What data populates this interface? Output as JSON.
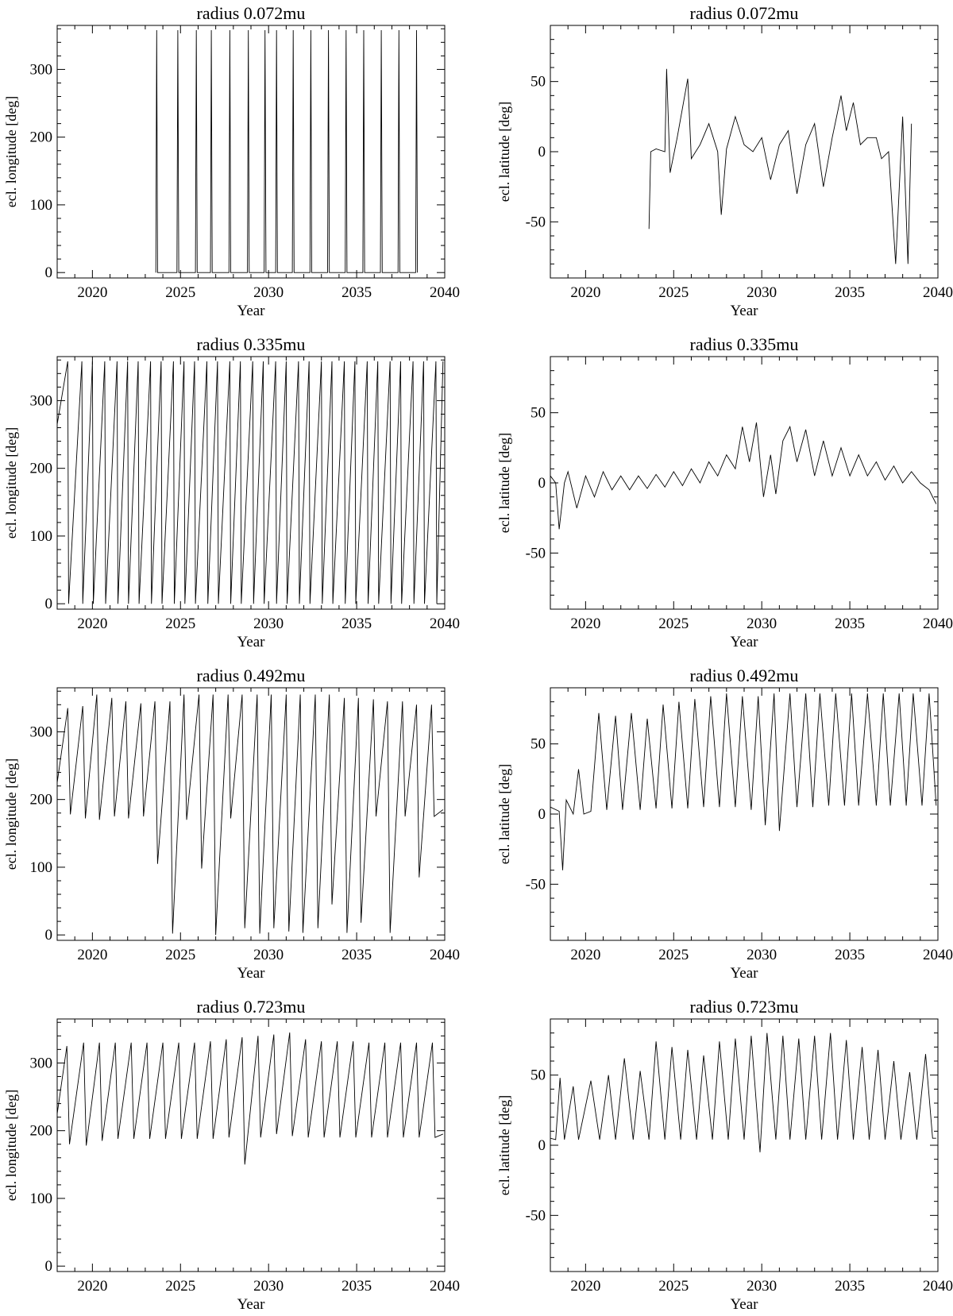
{
  "figure": {
    "panels_per_row": 2,
    "rows": 4
  },
  "chart_data": [
    {
      "type": "line",
      "title": "radius 0.072mu",
      "xlabel": "Year",
      "ylabel": "ecl. longitude [deg]",
      "xlim": [
        2018,
        2040
      ],
      "ylim": [
        -8,
        365
      ],
      "xticks": [
        2020,
        2025,
        2030,
        2035,
        2040
      ],
      "yticks": [
        0,
        100,
        200,
        300
      ],
      "grid": false,
      "series": [
        {
          "x": [
            2023.6,
            2023.65,
            2023.7,
            2024.8,
            2024.85,
            2024.9,
            2025.85,
            2025.9,
            2025.95,
            2026.7,
            2026.75,
            2026.8,
            2027.75,
            2027.8,
            2027.85,
            2028.8,
            2028.85,
            2028.9,
            2029.75,
            2029.8,
            2029.85,
            2030.4,
            2030.45,
            2030.5,
            2031.35,
            2031.4,
            2031.45,
            2032.35,
            2032.4,
            2032.45,
            2033.35,
            2033.4,
            2033.45,
            2034.35,
            2034.4,
            2034.45,
            2035.35,
            2035.4,
            2035.45,
            2036.35,
            2036.4,
            2036.45,
            2037.35,
            2037.4,
            2037.45,
            2038.35,
            2038.4,
            2038.45
          ],
          "y": [
            0,
            358,
            0,
            0,
            358,
            0,
            0,
            358,
            0,
            0,
            358,
            0,
            0,
            358,
            0,
            0,
            358,
            0,
            0,
            358,
            0,
            0,
            358,
            0,
            0,
            358,
            0,
            0,
            358,
            0,
            0,
            358,
            0,
            0,
            358,
            0,
            0,
            358,
            0,
            0,
            358,
            0,
            0,
            358,
            0,
            0,
            358,
            0
          ]
        }
      ]
    },
    {
      "type": "line",
      "title": "radius 0.072mu",
      "xlabel": "Year",
      "ylabel": "ecl. latitude [deg]",
      "xlim": [
        2018,
        2040
      ],
      "ylim": [
        -90,
        90
      ],
      "xticks": [
        2020,
        2025,
        2030,
        2035,
        2040
      ],
      "yticks": [
        -50,
        0,
        50
      ],
      "grid": false,
      "series": [
        {
          "x": [
            2023.6,
            2023.7,
            2024.0,
            2024.5,
            2024.6,
            2024.8,
            2025.2,
            2025.8,
            2026.0,
            2026.5,
            2027.0,
            2027.5,
            2027.7,
            2028.0,
            2028.5,
            2029.0,
            2029.5,
            2030.0,
            2030.5,
            2031.0,
            2031.5,
            2032.0,
            2032.5,
            2033.0,
            2033.5,
            2034.0,
            2034.5,
            2034.8,
            2035.2,
            2035.6,
            2036.0,
            2036.5,
            2036.8,
            2037.2,
            2037.6,
            2038.0,
            2038.3,
            2038.5
          ],
          "y": [
            -55,
            0,
            2,
            0,
            59,
            -15,
            10,
            52,
            -5,
            5,
            20,
            0,
            -45,
            2,
            25,
            5,
            0,
            10,
            -20,
            5,
            15,
            -30,
            5,
            20,
            -25,
            10,
            40,
            15,
            35,
            5,
            10,
            10,
            -5,
            0,
            -80,
            25,
            -80,
            20
          ]
        }
      ]
    },
    {
      "type": "line",
      "title": "radius 0.335mu",
      "xlabel": "Year",
      "ylabel": "ecl. longitude [deg]",
      "xlim": [
        2018,
        2040
      ],
      "ylim": [
        -8,
        365
      ],
      "xticks": [
        2020,
        2025,
        2030,
        2035,
        2040
      ],
      "yticks": [
        0,
        100,
        200,
        300
      ],
      "grid": false,
      "series": [
        {
          "x": [
            2018.0,
            2018.6,
            2018.65,
            2019.4,
            2019.45,
            2020.0,
            2020.05,
            2020.7,
            2020.75,
            2021.4,
            2021.45,
            2022.0,
            2022.05,
            2022.6,
            2022.65,
            2023.3,
            2023.35,
            2023.9,
            2023.95,
            2024.6,
            2024.65,
            2025.2,
            2025.25,
            2025.8,
            2025.85,
            2026.5,
            2026.55,
            2027.1,
            2027.15,
            2027.8,
            2027.85,
            2028.4,
            2028.45,
            2029.1,
            2029.15,
            2029.7,
            2029.75,
            2030.4,
            2030.45,
            2031.0,
            2031.05,
            2031.7,
            2031.75,
            2032.3,
            2032.35,
            2033.0,
            2033.05,
            2033.6,
            2033.65,
            2034.3,
            2034.35,
            2034.9,
            2034.95,
            2035.6,
            2035.65,
            2036.2,
            2036.25,
            2036.9,
            2036.95,
            2037.5,
            2037.55,
            2038.2,
            2038.25,
            2038.8,
            2038.85,
            2039.5,
            2039.55,
            2039.9
          ],
          "y": [
            265,
            358,
            0,
            358,
            0,
            358,
            0,
            358,
            0,
            358,
            0,
            358,
            0,
            358,
            0,
            358,
            0,
            358,
            0,
            358,
            0,
            358,
            0,
            358,
            0,
            358,
            0,
            358,
            0,
            358,
            0,
            358,
            0,
            358,
            0,
            358,
            0,
            358,
            0,
            358,
            0,
            358,
            0,
            358,
            0,
            358,
            0,
            358,
            0,
            358,
            0,
            358,
            0,
            358,
            0,
            358,
            0,
            358,
            0,
            358,
            0,
            358,
            0,
            358,
            0,
            358,
            0,
            358
          ]
        }
      ]
    },
    {
      "type": "line",
      "title": "radius 0.335mu",
      "xlabel": "Year",
      "ylabel": "ecl. latitude [deg]",
      "xlim": [
        2018,
        2040
      ],
      "ylim": [
        -90,
        90
      ],
      "xticks": [
        2020,
        2025,
        2030,
        2035,
        2040
      ],
      "yticks": [
        -50,
        0,
        50
      ],
      "grid": false,
      "series": [
        {
          "x": [
            2018.0,
            2018.3,
            2018.5,
            2018.8,
            2019.0,
            2019.5,
            2020.0,
            2020.5,
            2021.0,
            2021.5,
            2022.0,
            2022.5,
            2023.0,
            2023.5,
            2024.0,
            2024.5,
            2025.0,
            2025.5,
            2026.0,
            2026.5,
            2027.0,
            2027.5,
            2028.0,
            2028.5,
            2028.9,
            2029.3,
            2029.7,
            2030.1,
            2030.5,
            2030.8,
            2031.2,
            2031.6,
            2032.0,
            2032.5,
            2033.0,
            2033.5,
            2034.0,
            2034.5,
            2035.0,
            2035.5,
            2036.0,
            2036.5,
            2037.0,
            2037.5,
            2038.0,
            2038.5,
            2039.0,
            2039.5,
            2039.9
          ],
          "y": [
            5,
            0,
            -33,
            0,
            8,
            -18,
            5,
            -10,
            8,
            -5,
            5,
            -5,
            5,
            -4,
            6,
            -3,
            8,
            -2,
            10,
            0,
            15,
            5,
            20,
            10,
            40,
            15,
            43,
            -10,
            20,
            -8,
            30,
            40,
            15,
            38,
            5,
            30,
            5,
            25,
            5,
            20,
            5,
            15,
            2,
            12,
            0,
            8,
            0,
            -5,
            -15
          ]
        }
      ]
    },
    {
      "type": "line",
      "title": "radius 0.492mu",
      "xlabel": "Year",
      "ylabel": "ecl. longitude [deg]",
      "xlim": [
        2018,
        2040
      ],
      "ylim": [
        -8,
        365
      ],
      "xticks": [
        2020,
        2025,
        2030,
        2035,
        2040
      ],
      "yticks": [
        0,
        100,
        200,
        300
      ],
      "grid": false,
      "series": [
        {
          "x": [
            2018.0,
            2018.6,
            2018.75,
            2019.45,
            2019.6,
            2020.25,
            2020.4,
            2021.1,
            2021.25,
            2021.9,
            2022.05,
            2022.75,
            2022.9,
            2023.55,
            2023.7,
            2024.4,
            2024.55,
            2025.2,
            2025.35,
            2026.05,
            2026.2,
            2026.85,
            2027.0,
            2027.7,
            2027.85,
            2028.5,
            2028.65,
            2029.35,
            2029.5,
            2030.15,
            2030.3,
            2031.0,
            2031.15,
            2031.8,
            2031.95,
            2032.65,
            2032.8,
            2033.45,
            2033.6,
            2034.3,
            2034.45,
            2035.1,
            2035.25,
            2035.95,
            2036.1,
            2036.75,
            2036.9,
            2037.6,
            2037.75,
            2038.4,
            2038.55,
            2039.25,
            2039.4,
            2039.9
          ],
          "y": [
            225,
            335,
            178,
            338,
            172,
            355,
            170,
            350,
            175,
            345,
            172,
            342,
            175,
            345,
            105,
            345,
            2,
            355,
            170,
            355,
            98,
            355,
            0,
            355,
            172,
            355,
            10,
            355,
            2,
            355,
            10,
            355,
            5,
            355,
            3,
            355,
            10,
            355,
            45,
            350,
            3,
            350,
            18,
            348,
            175,
            345,
            3,
            345,
            175,
            340,
            85,
            340,
            175,
            185
          ]
        }
      ]
    },
    {
      "type": "line",
      "title": "radius 0.492mu",
      "xlabel": "Year",
      "ylabel": "ecl. latitude [deg]",
      "xlim": [
        2018,
        2040
      ],
      "ylim": [
        -90,
        90
      ],
      "xticks": [
        2020,
        2025,
        2030,
        2035,
        2040
      ],
      "yticks": [
        -50,
        0,
        50
      ],
      "grid": false,
      "series": [
        {
          "x": [
            2018.0,
            2018.5,
            2018.7,
            2018.9,
            2019.3,
            2019.6,
            2019.9,
            2020.3,
            2020.75,
            2021.2,
            2021.7,
            2022.1,
            2022.6,
            2023.1,
            2023.5,
            2024.0,
            2024.4,
            2024.9,
            2025.3,
            2025.8,
            2026.2,
            2026.7,
            2027.1,
            2027.6,
            2028.0,
            2028.5,
            2028.9,
            2029.4,
            2029.8,
            2030.2,
            2030.7,
            2031.0,
            2031.6,
            2032.0,
            2032.5,
            2032.9,
            2033.3,
            2033.8,
            2034.2,
            2034.7,
            2035.1,
            2035.5,
            2036.0,
            2036.5,
            2036.9,
            2037.3,
            2037.8,
            2038.2,
            2038.6,
            2039.1,
            2039.5,
            2039.9
          ],
          "y": [
            5,
            2,
            -40,
            10,
            0,
            32,
            0,
            2,
            72,
            3,
            70,
            3,
            72,
            3,
            68,
            4,
            78,
            4,
            80,
            4,
            82,
            5,
            84,
            5,
            86,
            5,
            84,
            3,
            84,
            -8,
            86,
            -12,
            86,
            5,
            86,
            5,
            86,
            6,
            86,
            6,
            86,
            6,
            86,
            6,
            86,
            6,
            86,
            6,
            86,
            6,
            86,
            6
          ]
        }
      ]
    },
    {
      "type": "line",
      "title": "radius 0.723mu",
      "xlabel": "Year",
      "ylabel": "ecl. longitude [deg]",
      "xlim": [
        2018,
        2040
      ],
      "ylim": [
        -8,
        365
      ],
      "xticks": [
        2020,
        2025,
        2030,
        2035,
        2040
      ],
      "yticks": [
        0,
        100,
        200,
        300
      ],
      "grid": false,
      "series": [
        {
          "x": [
            2018.0,
            2018.55,
            2018.7,
            2019.5,
            2019.65,
            2020.4,
            2020.55,
            2021.3,
            2021.45,
            2022.2,
            2022.35,
            2023.1,
            2023.25,
            2024.0,
            2024.15,
            2024.9,
            2025.05,
            2025.8,
            2025.95,
            2026.7,
            2026.85,
            2027.6,
            2027.75,
            2028.5,
            2028.65,
            2029.4,
            2029.55,
            2030.3,
            2030.45,
            2031.2,
            2031.35,
            2032.1,
            2032.25,
            2033.0,
            2033.15,
            2033.9,
            2034.05,
            2034.8,
            2034.95,
            2035.7,
            2035.85,
            2036.6,
            2036.75,
            2037.5,
            2037.65,
            2038.4,
            2038.55,
            2039.3,
            2039.45,
            2039.9
          ],
          "y": [
            225,
            325,
            180,
            330,
            178,
            330,
            185,
            330,
            188,
            330,
            188,
            330,
            188,
            330,
            188,
            330,
            188,
            330,
            188,
            332,
            188,
            335,
            190,
            338,
            150,
            340,
            190,
            342,
            195,
            345,
            192,
            335,
            190,
            332,
            190,
            332,
            190,
            332,
            190,
            330,
            190,
            330,
            190,
            330,
            190,
            330,
            190,
            330,
            190,
            195
          ]
        }
      ]
    },
    {
      "type": "line",
      "title": "radius 0.723mu",
      "xlabel": "Year",
      "ylabel": "ecl. latitude [deg]",
      "xlim": [
        2018,
        2040
      ],
      "ylim": [
        -90,
        90
      ],
      "xticks": [
        2020,
        2025,
        2030,
        2035,
        2040
      ],
      "yticks": [
        -50,
        0,
        50
      ],
      "grid": false,
      "series": [
        {
          "x": [
            2018.0,
            2018.3,
            2018.55,
            2018.8,
            2019.3,
            2019.6,
            2020.3,
            2020.8,
            2021.3,
            2021.7,
            2022.2,
            2022.7,
            2023.1,
            2023.6,
            2024.0,
            2024.5,
            2024.9,
            2025.4,
            2025.8,
            2026.3,
            2026.7,
            2027.2,
            2027.6,
            2028.1,
            2028.5,
            2029.0,
            2029.4,
            2029.9,
            2030.3,
            2030.8,
            2031.2,
            2031.6,
            2032.1,
            2032.5,
            2033.0,
            2033.4,
            2033.9,
            2034.3,
            2034.8,
            2035.2,
            2035.7,
            2036.1,
            2036.6,
            2037.0,
            2037.5,
            2037.9,
            2038.4,
            2038.8,
            2039.3,
            2039.7,
            2039.9
          ],
          "y": [
            5,
            4,
            48,
            4,
            42,
            4,
            46,
            4,
            50,
            4,
            62,
            4,
            53,
            4,
            74,
            4,
            70,
            4,
            68,
            4,
            64,
            4,
            74,
            4,
            76,
            4,
            78,
            -5,
            80,
            4,
            78,
            4,
            76,
            4,
            78,
            4,
            80,
            4,
            75,
            4,
            70,
            4,
            68,
            4,
            60,
            4,
            52,
            4,
            65,
            5,
            5
          ]
        }
      ]
    }
  ]
}
